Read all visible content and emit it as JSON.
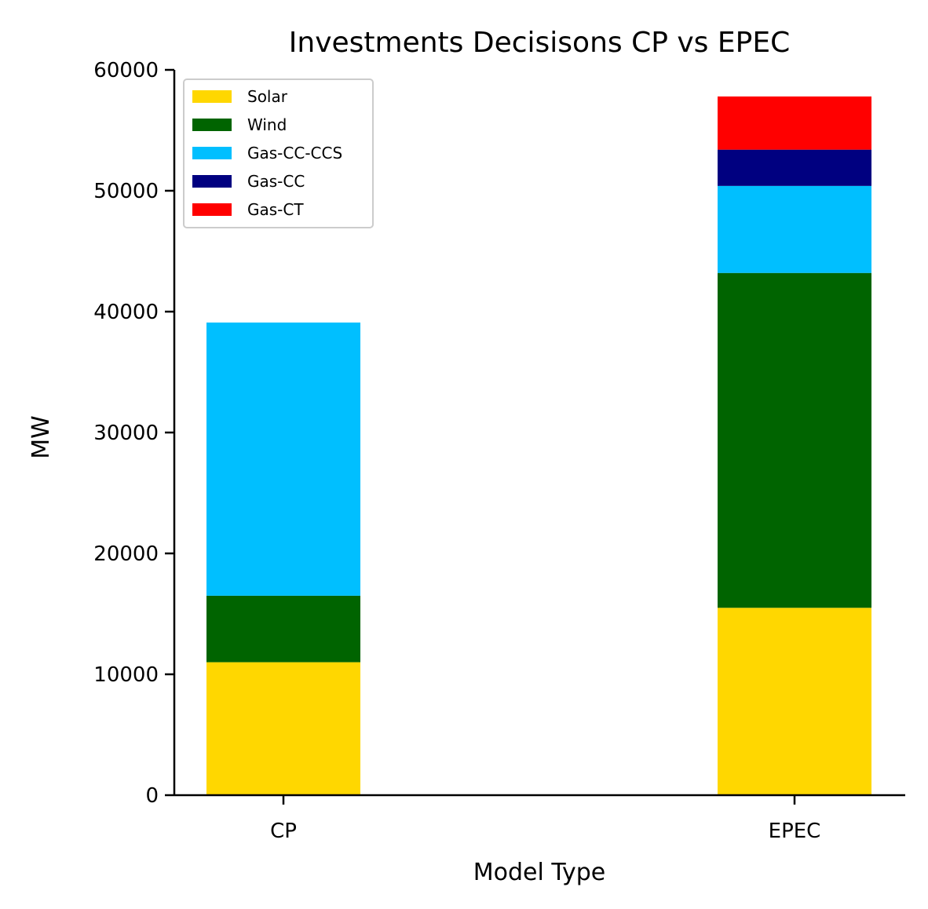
{
  "chart_data": {
    "type": "bar",
    "stacked": true,
    "title": "Investments Decisisons CP vs EPEC",
    "xlabel": "Model Type",
    "ylabel": "MW",
    "ylim": [
      0,
      60000
    ],
    "yticks": [
      0,
      10000,
      20000,
      30000,
      40000,
      50000,
      60000
    ],
    "categories": [
      "CP",
      "EPEC"
    ],
    "series": [
      {
        "name": "Solar",
        "color": "#FFD700",
        "values": [
          11000,
          15500
        ]
      },
      {
        "name": "Wind",
        "color": "#006400",
        "values": [
          5500,
          27700
        ]
      },
      {
        "name": "Gas-CC-CCS",
        "color": "#00BFFF",
        "values": [
          22600,
          7200
        ]
      },
      {
        "name": "Gas-CC",
        "color": "#000080",
        "values": [
          0,
          3000
        ]
      },
      {
        "name": "Gas-CT",
        "color": "#FF0000",
        "values": [
          0,
          4400
        ]
      }
    ],
    "legend": {
      "position": "top-left"
    },
    "grid": false
  }
}
